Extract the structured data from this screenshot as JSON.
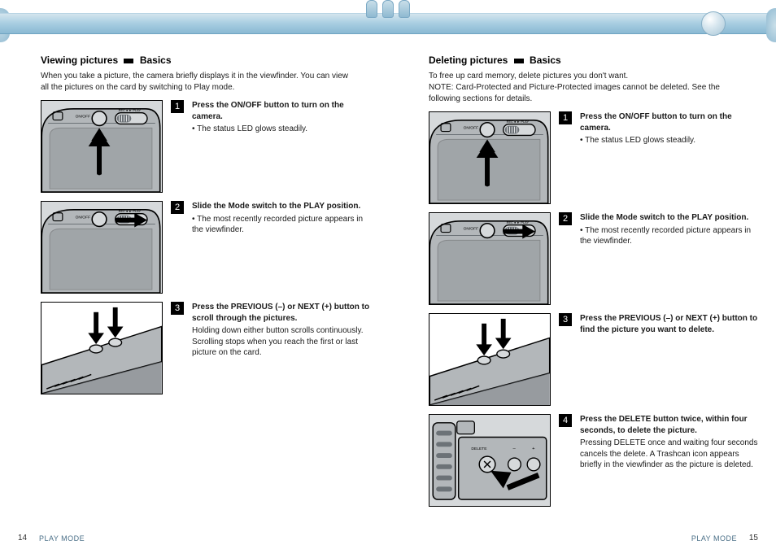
{
  "chrome": {
    "bar_gradient": [
      "#d4e5ee",
      "#a7cde1",
      "#8ab9d3"
    ],
    "knob_color": "#a8c6d7"
  },
  "left": {
    "title_prefix": "Viewing pictures ",
    "title_suffix": " Basics",
    "intro_a": "When you take a picture, the camera briefly displays it in the viewfinder. You can view all the pictures on the card by switching to Play mode.",
    "steps": [
      {
        "num": "1",
        "img": "powerbtn",
        "text": "Press the ON/OFF button to turn on the camera.",
        "sub": "• The status LED glows steadily."
      },
      {
        "num": "2",
        "img": "modeslide",
        "text": "Slide the Mode switch to the PLAY position.",
        "sub": "• The most recently recorded picture appears in the viewfinder."
      },
      {
        "num": "3",
        "img": "prevnext",
        "text": "Press the PREVIOUS (–) or NEXT (+) button to scroll through the pictures.",
        "sub": "Holding down either button scrolls continuously. Scrolling stops when you reach the first or last picture on the card."
      }
    ],
    "page_num": "14",
    "footer": "PLAY MODE"
  },
  "right": {
    "title_prefix": "Deleting pictures ",
    "title_suffix": " Basics",
    "intro_a": "To free up card memory, delete pictures you don't want.",
    "intro_b": "NOTE: Card-Protected and Picture-Protected images cannot be deleted. See the following sections for details.",
    "steps": [
      {
        "num": "1",
        "img": "powerbtn",
        "text": "Press the ON/OFF button to turn on the camera.",
        "sub": "• The status LED glows steadily."
      },
      {
        "num": "2",
        "img": "modeslide",
        "text": "Slide the Mode switch to the PLAY position.",
        "sub": "• The most recently recorded picture appears in the viewfinder."
      },
      {
        "num": "3",
        "img": "prevnext",
        "text": "Press the PREVIOUS (–) or NEXT (+) button to find the picture you want to delete.",
        "sub": ""
      },
      {
        "num": "4",
        "img": "delete",
        "text": "Press the DELETE button twice, within four seconds, to delete the picture.",
        "sub": "Pressing DELETE once and waiting four seconds cancels the delete. A Trashcan icon appears briefly in the viewfinder as the picture is deleted."
      }
    ],
    "page_num": "15",
    "footer": "PLAY MODE"
  },
  "illustration_colors": {
    "body_fill": "#b3b7ba",
    "body_dark": "#6c7277",
    "body_light": "#d6d9db",
    "stroke": "#000000",
    "arrow_fill": "#000000",
    "label_white": "#ffffff"
  }
}
